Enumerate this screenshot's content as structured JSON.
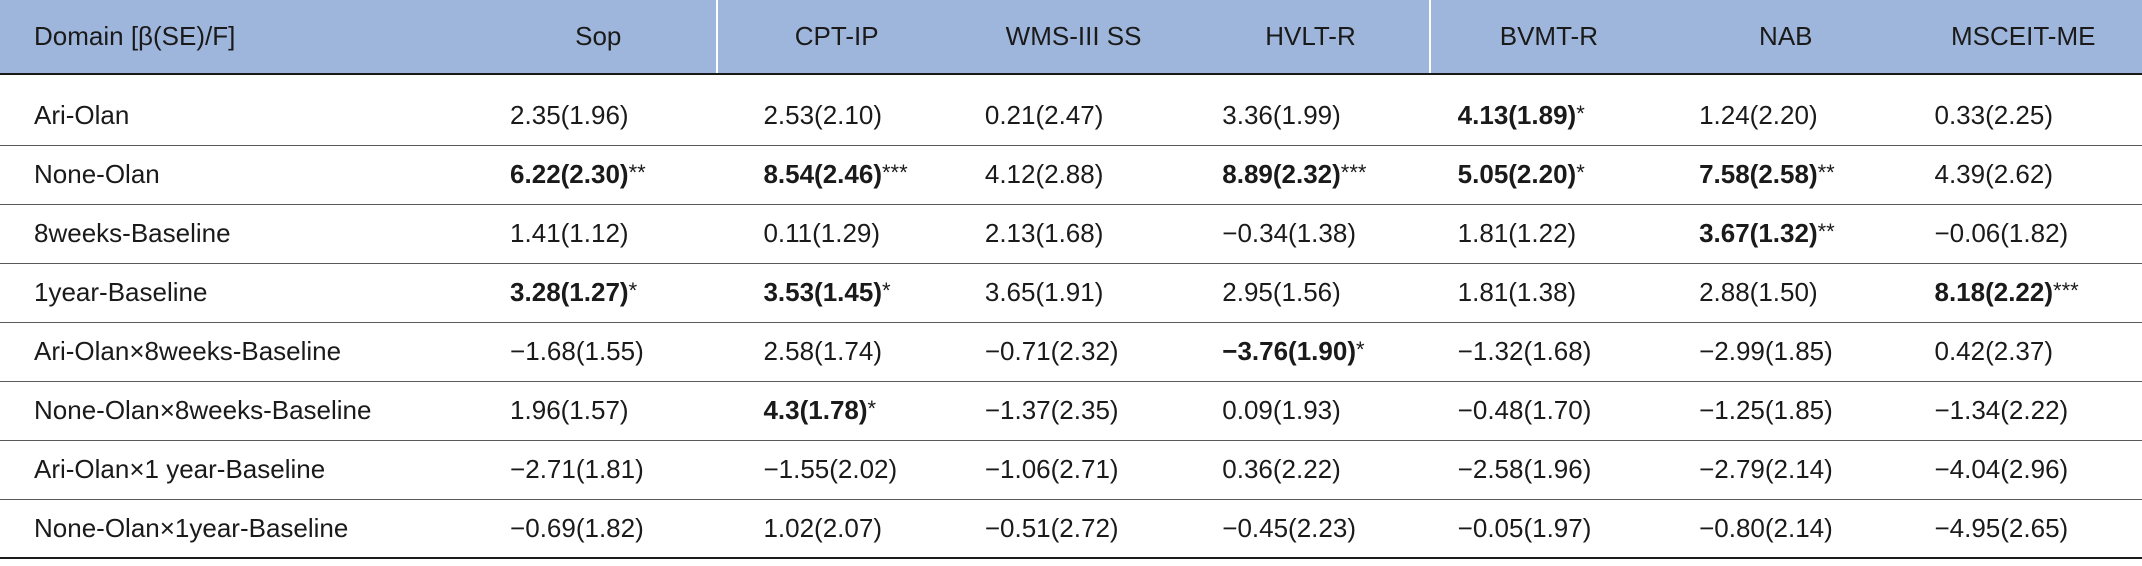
{
  "table": {
    "headers": [
      "Domain [β(SE)/F]",
      "Sop",
      "CPT-IP",
      "WMS-III SS",
      "HVLT-R",
      "BVMT-R",
      "NAB",
      "MSCEIT-ME"
    ],
    "rows": [
      {
        "label": "Ari-Olan",
        "cells": [
          {
            "v": "2.35(1.96)",
            "b": false,
            "s": ""
          },
          {
            "v": "2.53(2.10)",
            "b": false,
            "s": ""
          },
          {
            "v": "0.21(2.47)",
            "b": false,
            "s": ""
          },
          {
            "v": "3.36(1.99)",
            "b": false,
            "s": ""
          },
          {
            "v": "4.13(1.89)",
            "b": true,
            "s": "*"
          },
          {
            "v": "1.24(2.20)",
            "b": false,
            "s": ""
          },
          {
            "v": "0.33(2.25)",
            "b": false,
            "s": ""
          }
        ]
      },
      {
        "label": "None-Olan",
        "cells": [
          {
            "v": "6.22(2.30)",
            "b": true,
            "s": "**"
          },
          {
            "v": "8.54(2.46)",
            "b": true,
            "s": "***"
          },
          {
            "v": "4.12(2.88)",
            "b": false,
            "s": ""
          },
          {
            "v": "8.89(2.32)",
            "b": true,
            "s": "***"
          },
          {
            "v": "5.05(2.20)",
            "b": true,
            "s": "*"
          },
          {
            "v": "7.58(2.58)",
            "b": true,
            "s": "**"
          },
          {
            "v": "4.39(2.62)",
            "b": false,
            "s": ""
          }
        ]
      },
      {
        "label": "8weeks-Baseline",
        "cells": [
          {
            "v": "1.41(1.12)",
            "b": false,
            "s": ""
          },
          {
            "v": "0.11(1.29)",
            "b": false,
            "s": ""
          },
          {
            "v": "2.13(1.68)",
            "b": false,
            "s": ""
          },
          {
            "v": "−0.34(1.38)",
            "b": false,
            "s": ""
          },
          {
            "v": "1.81(1.22)",
            "b": false,
            "s": ""
          },
          {
            "v": "3.67(1.32)",
            "b": true,
            "s": "**"
          },
          {
            "v": "−0.06(1.82)",
            "b": false,
            "s": ""
          }
        ]
      },
      {
        "label": "1year-Baseline",
        "cells": [
          {
            "v": "3.28(1.27)",
            "b": true,
            "s": "*"
          },
          {
            "v": "3.53(1.45)",
            "b": true,
            "s": "*"
          },
          {
            "v": "3.65(1.91)",
            "b": false,
            "s": ""
          },
          {
            "v": "2.95(1.56)",
            "b": false,
            "s": ""
          },
          {
            "v": "1.81(1.38)",
            "b": false,
            "s": ""
          },
          {
            "v": "2.88(1.50)",
            "b": false,
            "s": ""
          },
          {
            "v": "8.18(2.22)",
            "b": true,
            "s": "***"
          }
        ]
      },
      {
        "label": "Ari-Olan×8weeks-Baseline",
        "cells": [
          {
            "v": "−1.68(1.55)",
            "b": false,
            "s": ""
          },
          {
            "v": "2.58(1.74)",
            "b": false,
            "s": ""
          },
          {
            "v": "−0.71(2.32)",
            "b": false,
            "s": ""
          },
          {
            "v": "−3.76(1.90)",
            "b": true,
            "s": "*"
          },
          {
            "v": "−1.32(1.68)",
            "b": false,
            "s": ""
          },
          {
            "v": "−2.99(1.85)",
            "b": false,
            "s": ""
          },
          {
            "v": "0.42(2.37)",
            "b": false,
            "s": ""
          }
        ]
      },
      {
        "label": "None-Olan×8weeks-Baseline",
        "cells": [
          {
            "v": "1.96(1.57)",
            "b": false,
            "s": ""
          },
          {
            "v": "4.3(1.78)",
            "b": true,
            "s": "*"
          },
          {
            "v": "−1.37(2.35)",
            "b": false,
            "s": ""
          },
          {
            "v": "0.09(1.93)",
            "b": false,
            "s": ""
          },
          {
            "v": "−0.48(1.70)",
            "b": false,
            "s": ""
          },
          {
            "v": "−1.25(1.85)",
            "b": false,
            "s": ""
          },
          {
            "v": "−1.34(2.22)",
            "b": false,
            "s": ""
          }
        ]
      },
      {
        "label": "Ari-Olan×1 year-Baseline",
        "cells": [
          {
            "v": "−2.71(1.81)",
            "b": false,
            "s": ""
          },
          {
            "v": "−1.55(2.02)",
            "b": false,
            "s": ""
          },
          {
            "v": "−1.06(2.71)",
            "b": false,
            "s": ""
          },
          {
            "v": "0.36(2.22)",
            "b": false,
            "s": ""
          },
          {
            "v": "−2.58(1.96)",
            "b": false,
            "s": ""
          },
          {
            "v": "−2.79(2.14)",
            "b": false,
            "s": ""
          },
          {
            "v": "−4.04(2.96)",
            "b": false,
            "s": ""
          }
        ]
      },
      {
        "label": "None-Olan×1year-Baseline",
        "cells": [
          {
            "v": "−0.69(1.82)",
            "b": false,
            "s": ""
          },
          {
            "v": "1.02(2.07)",
            "b": false,
            "s": ""
          },
          {
            "v": "−0.51(2.72)",
            "b": false,
            "s": ""
          },
          {
            "v": "−0.45(2.23)",
            "b": false,
            "s": ""
          },
          {
            "v": "−0.05(1.97)",
            "b": false,
            "s": ""
          },
          {
            "v": "−0.80(2.14)",
            "b": false,
            "s": ""
          },
          {
            "v": "−4.95(2.65)",
            "b": false,
            "s": ""
          }
        ]
      }
    ]
  },
  "colors": {
    "header_bg": "#9fb6dc"
  }
}
